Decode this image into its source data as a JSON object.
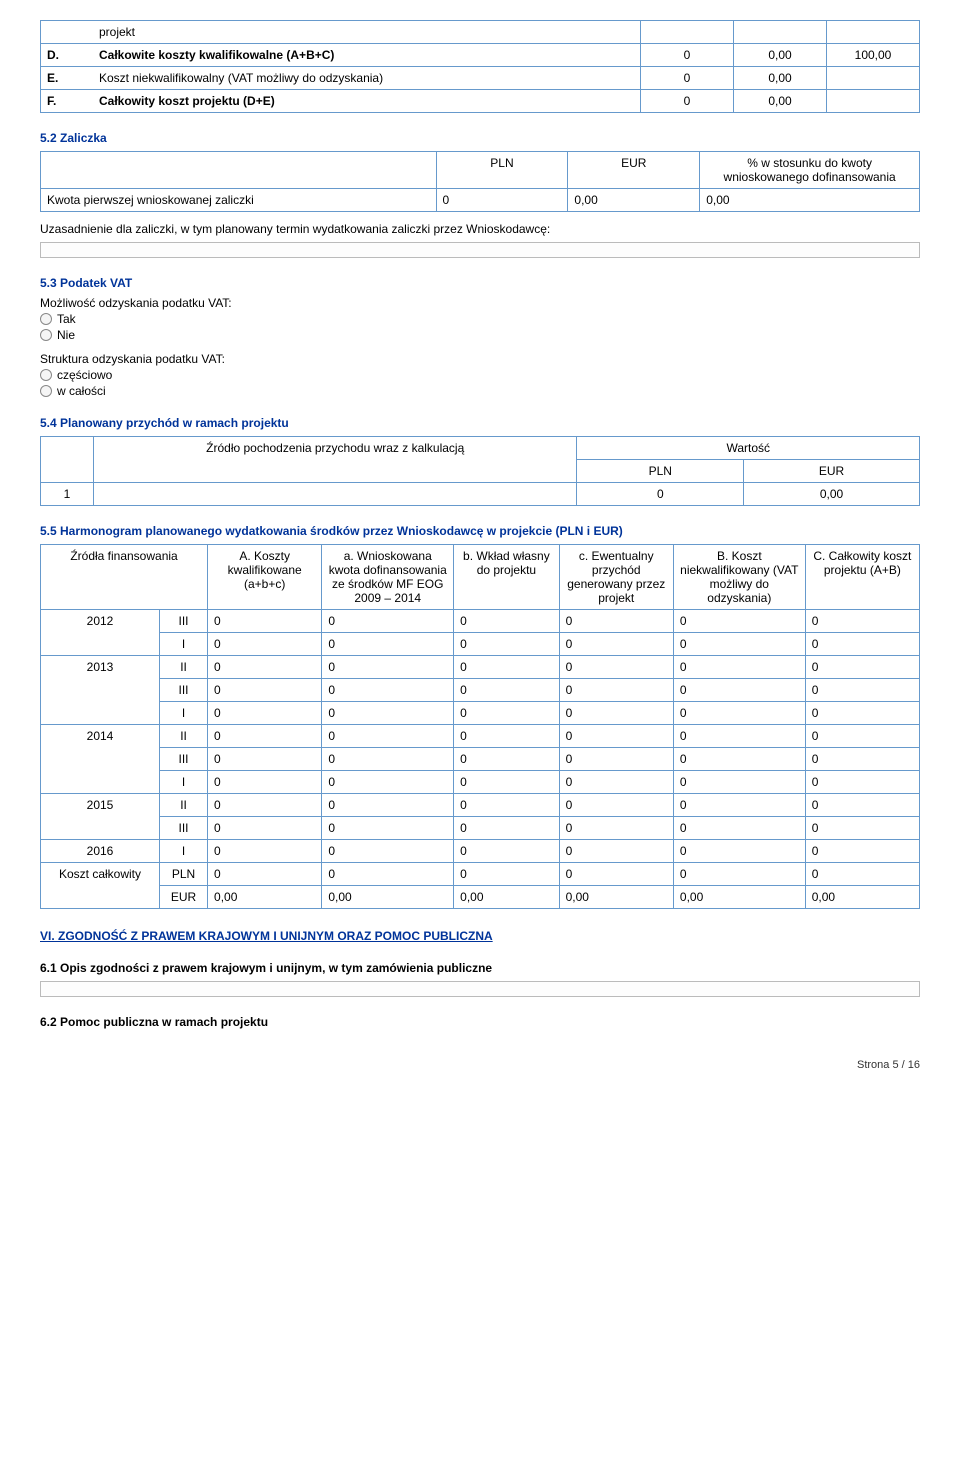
{
  "topTable": {
    "rows": [
      {
        "label": "projekt",
        "c1": "",
        "c2": "",
        "c3": ""
      },
      {
        "label": "D.",
        "text": "Całkowite koszty kwalifikowalne (A+B+C)",
        "c1": "0",
        "c2": "0,00",
        "c3": "100,00"
      },
      {
        "label": "E.",
        "text": "Koszt niekwalifikowalny (VAT możliwy do odzyskania)",
        "c1": "0",
        "c2": "0,00",
        "c3": ""
      },
      {
        "label": "F.",
        "text": "Całkowity koszt projektu (D+E)",
        "c1": "0",
        "c2": "0,00",
        "c3": ""
      }
    ]
  },
  "s52": {
    "title": "5.2 Zaliczka",
    "h1": "PLN",
    "h2": "EUR",
    "h3": "% w stosunku do kwoty wnioskowanego dofinansowania",
    "rowLabel": "Kwota pierwszej wnioskowanej zaliczki",
    "c1": "0",
    "c2": "0,00",
    "c3": "0,00",
    "uzasad": "Uzasadnienie dla zaliczki, w tym planowany termin wydatkowania zaliczki przez Wnioskodawcę:"
  },
  "s53": {
    "title": "5.3 Podatek VAT",
    "q1": "Możliwość odzyskania podatku VAT:",
    "opt1a": "Tak",
    "opt1b": "Nie",
    "q2": "Struktura odzyskania podatku VAT:",
    "opt2a": "częściowo",
    "opt2b": "w całości"
  },
  "s54": {
    "title": "5.4 Planowany przychód w ramach projektu",
    "colA": "Źródło pochodzenia przychodu wraz z kalkulacją",
    "wart": "Wartość",
    "pln": "PLN",
    "eur": "EUR",
    "row1_no": "1",
    "row1_pln": "0",
    "row1_eur": "0,00"
  },
  "s55": {
    "title": "5.5 Harmonogram planowanego wydatkowania środków przez Wnioskodawcę w projekcie (PLN i EUR)",
    "h_src": "Źródła finansowania",
    "hA": "A. Koszty kwalifikowane (a+b+c)",
    "ha": "a. Wnioskowana kwota dofinansowania ze środków MF EOG 2009 – 2014",
    "hb": "b. Wkład własny do projektu",
    "hc": "c. Ewentualny przychód generowany przez projekt",
    "hB": "B. Koszt niekwalifikowany (VAT możliwy do odzyskania)",
    "hC": "C. Całkowity koszt projektu (A+B)",
    "rows": [
      {
        "y": "2012",
        "q": "III",
        "v": [
          "0",
          "0",
          "0",
          "0",
          "0",
          "0"
        ]
      },
      {
        "y": "",
        "q": "I",
        "v": [
          "0",
          "0",
          "0",
          "0",
          "0",
          "0"
        ]
      },
      {
        "y": "2013",
        "q": "II",
        "v": [
          "0",
          "0",
          "0",
          "0",
          "0",
          "0"
        ]
      },
      {
        "y": "",
        "q": "III",
        "v": [
          "0",
          "0",
          "0",
          "0",
          "0",
          "0"
        ]
      },
      {
        "y": "",
        "q": "I",
        "v": [
          "0",
          "0",
          "0",
          "0",
          "0",
          "0"
        ]
      },
      {
        "y": "2014",
        "q": "II",
        "v": [
          "0",
          "0",
          "0",
          "0",
          "0",
          "0"
        ]
      },
      {
        "y": "",
        "q": "III",
        "v": [
          "0",
          "0",
          "0",
          "0",
          "0",
          "0"
        ]
      },
      {
        "y": "",
        "q": "I",
        "v": [
          "0",
          "0",
          "0",
          "0",
          "0",
          "0"
        ]
      },
      {
        "y": "2015",
        "q": "II",
        "v": [
          "0",
          "0",
          "0",
          "0",
          "0",
          "0"
        ]
      },
      {
        "y": "",
        "q": "III",
        "v": [
          "0",
          "0",
          "0",
          "0",
          "0",
          "0"
        ]
      },
      {
        "y": "2016",
        "q": "I",
        "v": [
          "0",
          "0",
          "0",
          "0",
          "0",
          "0"
        ]
      }
    ],
    "sumLabel": "Koszt całkowity",
    "sumPLN": {
      "q": "PLN",
      "v": [
        "0",
        "0",
        "0",
        "0",
        "0",
        "0"
      ]
    },
    "sumEUR": {
      "q": "EUR",
      "v": [
        "0,00",
        "0,00",
        "0,00",
        "0,00",
        "0,00",
        "0,00"
      ]
    }
  },
  "s6": {
    "heading": "VI. ZGODNOŚĆ Z PRAWEM KRAJOWYM I UNIJNYM ORAZ POMOC PUBLICZNA",
    "s61": "6.1 Opis zgodności z prawem krajowym i unijnym, w tym zamówienia publiczne",
    "s62": "6.2 Pomoc publiczna w ramach projektu"
  },
  "footer": "Strona 5 / 16"
}
